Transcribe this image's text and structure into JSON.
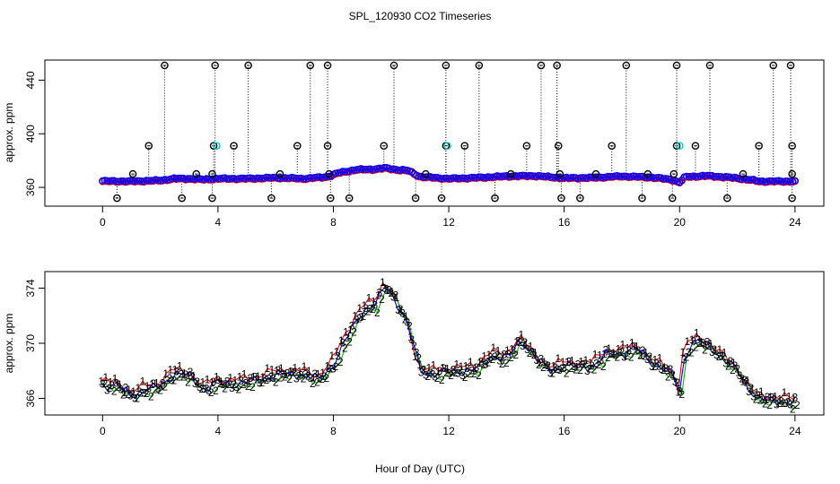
{
  "chart_data": [
    {
      "type": "scatter",
      "title": "SPL_120930  CO2 Timeseries",
      "xlabel": "",
      "ylabel": "approx. ppm",
      "xlim": [
        -2,
        25
      ],
      "ylim": [
        346,
        455
      ],
      "x_ticks": [
        0,
        4,
        8,
        12,
        16,
        20,
        24
      ],
      "x_tick_labels": [
        "0",
        "4",
        "8",
        "12",
        "16",
        "20",
        "24"
      ],
      "y_ticks": [
        360,
        400,
        440
      ],
      "y_tick_labels": [
        "360",
        "400",
        "440"
      ],
      "colors": {
        "main": "#0000ff",
        "outline": "#ff0000",
        "outlier": "#000000",
        "highlight": "#00cccc"
      },
      "baseline": [
        [
          0.0,
          364.8
        ],
        [
          1.0,
          364.6
        ],
        [
          2.0,
          365.3
        ],
        [
          2.5,
          366.6
        ],
        [
          3.0,
          366.6
        ],
        [
          3.5,
          366.0
        ],
        [
          4.0,
          366.6
        ],
        [
          5.0,
          366.6
        ],
        [
          6.0,
          367.3
        ],
        [
          7.0,
          366.6
        ],
        [
          7.8,
          368.0
        ],
        [
          8.2,
          371.0
        ],
        [
          8.8,
          373.3
        ],
        [
          9.4,
          373.6
        ],
        [
          9.8,
          374.5
        ],
        [
          10.2,
          373.3
        ],
        [
          10.6,
          372.6
        ],
        [
          11.0,
          368.0
        ],
        [
          12.0,
          366.6
        ],
        [
          13.0,
          367.3
        ],
        [
          14.0,
          368.4
        ],
        [
          15.0,
          368.7
        ],
        [
          16.0,
          367.0
        ],
        [
          17.0,
          367.3
        ],
        [
          18.0,
          368.4
        ],
        [
          19.0,
          367.6
        ],
        [
          19.7,
          366.0
        ],
        [
          20.0,
          363.8
        ],
        [
          20.2,
          368.0
        ],
        [
          21.0,
          368.7
        ],
        [
          22.0,
          367.0
        ],
        [
          22.8,
          364.6
        ],
        [
          24.0,
          364.6
        ]
      ],
      "outliers_high": [
        2.15,
        3.9,
        5.05,
        7.2,
        7.8,
        10.1,
        11.9,
        13.05,
        15.2,
        15.75,
        18.15,
        19.9,
        21.05,
        23.25,
        23.85
      ],
      "outliers_mid": [
        1.6,
        3.85,
        4.55,
        6.75,
        7.8,
        9.75,
        11.9,
        12.55,
        14.7,
        15.8,
        17.65,
        19.9,
        20.55,
        22.75,
        23.9
      ],
      "outliers_low": [
        0.5,
        2.75,
        3.8,
        5.85,
        7.9,
        8.55,
        10.85,
        11.75,
        13.6,
        15.9,
        16.55,
        18.7,
        19.75,
        21.65,
        23.9
      ],
      "outliers_near": [
        1.05,
        3.25,
        3.8,
        6.15,
        7.85,
        11.2,
        14.15,
        15.85,
        17.1,
        18.9,
        19.8,
        22.2,
        23.9
      ],
      "outlier_values": {
        "high": 451,
        "mid": 391,
        "low": 352,
        "near": 370
      },
      "highlights": [
        [
          3.95,
          391
        ],
        [
          11.95,
          391
        ],
        [
          20.0,
          391
        ]
      ]
    },
    {
      "type": "line",
      "title": "",
      "xlabel": "Hour of Day (UTC)",
      "ylabel": "approx. ppm",
      "xlim": [
        -2,
        25
      ],
      "ylim": [
        364.8,
        375.2
      ],
      "x_ticks": [
        0,
        4,
        8,
        12,
        16,
        20,
        24
      ],
      "x_tick_labels": [
        "0",
        "4",
        "8",
        "12",
        "16",
        "20",
        "24"
      ],
      "y_ticks": [
        366,
        370,
        374
      ],
      "y_tick_labels": [
        "366",
        "370",
        "374"
      ],
      "series": [
        {
          "name": "1",
          "symbol": "1",
          "color": "#ff0000",
          "offset_x": -0.05,
          "offset_y": 0.35
        },
        {
          "name": "2",
          "symbol": "2",
          "color": "#00bb00",
          "offset_x": 0.08,
          "offset_y": -0.15
        },
        {
          "name": "3",
          "symbol": "3",
          "color": "#0000ff",
          "offset_x": 0.0,
          "offset_y": 0.05
        }
      ],
      "curve": [
        [
          0.0,
          366.9
        ],
        [
          0.5,
          366.9
        ],
        [
          1.0,
          366.1
        ],
        [
          1.5,
          366.6
        ],
        [
          2.0,
          366.8
        ],
        [
          2.5,
          367.8
        ],
        [
          3.0,
          367.6
        ],
        [
          3.5,
          366.6
        ],
        [
          4.0,
          367.1
        ],
        [
          4.5,
          366.9
        ],
        [
          5.0,
          367.2
        ],
        [
          5.5,
          367.3
        ],
        [
          6.0,
          367.7
        ],
        [
          6.5,
          367.7
        ],
        [
          7.0,
          367.7
        ],
        [
          7.5,
          367.3
        ],
        [
          8.0,
          368.4
        ],
        [
          8.5,
          370.5
        ],
        [
          9.0,
          372.3
        ],
        [
          9.5,
          372.8
        ],
        [
          9.8,
          374.2
        ],
        [
          10.2,
          372.9
        ],
        [
          10.6,
          371.2
        ],
        [
          11.0,
          368.0
        ],
        [
          11.4,
          367.7
        ],
        [
          12.0,
          367.9
        ],
        [
          12.5,
          367.9
        ],
        [
          13.0,
          368.1
        ],
        [
          13.5,
          369.1
        ],
        [
          14.0,
          368.8
        ],
        [
          14.5,
          370.2
        ],
        [
          15.0,
          368.9
        ],
        [
          15.5,
          368.0
        ],
        [
          16.0,
          368.3
        ],
        [
          16.5,
          368.3
        ],
        [
          17.0,
          368.3
        ],
        [
          17.5,
          369.2
        ],
        [
          18.0,
          369.2
        ],
        [
          18.5,
          369.6
        ],
        [
          19.0,
          368.6
        ],
        [
          19.5,
          368.1
        ],
        [
          19.8,
          367.5
        ],
        [
          20.0,
          366.4
        ],
        [
          20.2,
          369.4
        ],
        [
          20.6,
          370.2
        ],
        [
          21.0,
          369.7
        ],
        [
          21.5,
          368.9
        ],
        [
          22.0,
          368.0
        ],
        [
          22.3,
          366.9
        ],
        [
          22.7,
          366.0
        ],
        [
          23.2,
          365.8
        ],
        [
          23.8,
          365.7
        ]
      ]
    }
  ],
  "figure": {
    "title": "SPL_120930  CO2 Timeseries",
    "xlabel": "Hour of Day (UTC)"
  }
}
